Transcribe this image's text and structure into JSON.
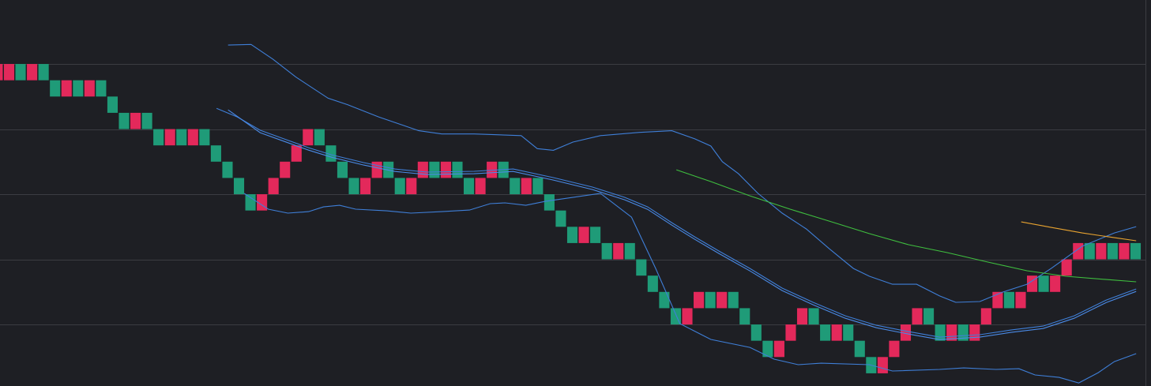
{
  "chart_data": {
    "type": "renko",
    "xlim": [
      0.66,
      100.79
    ],
    "ylim": [
      -3.78,
      19.93
    ],
    "grid_lines": [
      0,
      4,
      8,
      12,
      16
    ],
    "grid_color": "#3b3c42",
    "background": "#1e1f24",
    "bricks": {
      "values": [
        16,
        16,
        16,
        16,
        16,
        15,
        15,
        15,
        15,
        15,
        14,
        13,
        13,
        13,
        12,
        12,
        12,
        12,
        12,
        11,
        10,
        9,
        8,
        8,
        9,
        10,
        11,
        12,
        12,
        11,
        10,
        9,
        9,
        10,
        10,
        9,
        9,
        10,
        10,
        10,
        10,
        9,
        9,
        10,
        10,
        9,
        9,
        9,
        8,
        7,
        6,
        6,
        6,
        5,
        5,
        5,
        4,
        3,
        2,
        1,
        1,
        2,
        2,
        2,
        2,
        1,
        0,
        -1,
        -1,
        0,
        1,
        1,
        0,
        0,
        0,
        -1,
        -2,
        -2,
        -1,
        0,
        1,
        1,
        0,
        0,
        0,
        0,
        1,
        2,
        2,
        2,
        3,
        3,
        3,
        4,
        5,
        5,
        5,
        5,
        5,
        5
      ],
      "colors": [
        "#e3295b",
        "#e3295b",
        "#1f9b78",
        "#e3295b",
        "#1f9b78",
        "#1f9b78",
        "#e3295b",
        "#1f9b78",
        "#e3295b",
        "#1f9b78",
        "#1f9b78",
        "#1f9b78",
        "#e3295b",
        "#1f9b78",
        "#1f9b78",
        "#e3295b",
        "#1f9b78",
        "#e3295b",
        "#1f9b78",
        "#1f9b78",
        "#1f9b78",
        "#1f9b78",
        "#1f9b78",
        "#e3295b",
        "#e3295b",
        "#e3295b",
        "#e3295b",
        "#e3295b",
        "#1f9b78",
        "#1f9b78",
        "#1f9b78",
        "#1f9b78",
        "#e3295b",
        "#e3295b",
        "#1f9b78",
        "#1f9b78",
        "#e3295b",
        "#e3295b",
        "#1f9b78",
        "#e3295b",
        "#1f9b78",
        "#1f9b78",
        "#e3295b",
        "#e3295b",
        "#1f9b78",
        "#1f9b78",
        "#e3295b",
        "#1f9b78",
        "#1f9b78",
        "#1f9b78",
        "#1f9b78",
        "#e3295b",
        "#1f9b78",
        "#1f9b78",
        "#e3295b",
        "#1f9b78",
        "#1f9b78",
        "#1f9b78",
        "#1f9b78",
        "#1f9b78",
        "#e3295b",
        "#e3295b",
        "#1f9b78",
        "#e3295b",
        "#1f9b78",
        "#1f9b78",
        "#1f9b78",
        "#1f9b78",
        "#e3295b",
        "#e3295b",
        "#e3295b",
        "#1f9b78",
        "#1f9b78",
        "#e3295b",
        "#1f9b78",
        "#1f9b78",
        "#1f9b78",
        "#e3295b",
        "#e3295b",
        "#e3295b",
        "#e3295b",
        "#1f9b78",
        "#1f9b78",
        "#e3295b",
        "#1f9b78",
        "#e3295b",
        "#e3295b",
        "#e3295b",
        "#1f9b78",
        "#e3295b",
        "#e3295b",
        "#1f9b78",
        "#e3295b",
        "#e3295b",
        "#e3295b",
        "#1f9b78",
        "#e3295b",
        "#1f9b78",
        "#e3295b",
        "#1f9b78"
      ]
    },
    "series": [
      {
        "color": "#3f7fd8",
        "x": [
          20.5,
          22.5,
          24.4,
          26.4,
          29.2,
          30.9,
          33.6,
          37.1,
          39.1,
          41.9,
          46.0,
          47.4,
          48.8,
          50.5,
          52.9,
          56.3,
          59.1,
          61.1,
          62.5,
          63.5,
          64.9,
          66.6,
          68.7,
          70.8,
          72.8,
          74.9,
          76.3,
          78.3,
          80.4,
          82.4,
          83.8,
          85.9,
          87.9,
          90.0,
          92.1,
          94.8,
          97.6,
          99.5
        ],
        "values": [
          17.16,
          17.2,
          16.3,
          15.2,
          13.9,
          13.5,
          12.75,
          11.9,
          11.7,
          11.7,
          11.6,
          10.8,
          10.7,
          11.2,
          11.6,
          11.8,
          11.9,
          11.4,
          10.96,
          10.0,
          9.26,
          8.05,
          6.84,
          5.87,
          4.65,
          3.44,
          2.96,
          2.47,
          2.47,
          1.75,
          1.36,
          1.41,
          1.99,
          2.47,
          3.44,
          4.8,
          5.62,
          6.01
        ]
      },
      {
        "color": "#3f7fd8",
        "x": [
          19.5,
          21.3,
          23.3,
          25.4,
          27.5,
          29.5,
          32.3,
          35.0,
          37.8,
          41.9,
          45.3,
          48.8,
          52.2,
          55.0,
          57.0,
          59.1,
          61.1,
          63.2,
          65.9,
          68.7,
          71.4,
          74.2,
          76.9,
          79.7,
          82.4,
          85.9,
          88.6,
          91.4,
          94.1,
          96.9,
          99.5
        ],
        "values": [
          13.28,
          12.75,
          11.93,
          11.39,
          10.86,
          10.42,
          9.94,
          9.55,
          9.36,
          9.41,
          9.55,
          9.02,
          8.44,
          7.81,
          7.22,
          6.25,
          5.38,
          4.51,
          3.44,
          2.23,
          1.36,
          0.53,
          -0.05,
          -0.44,
          -0.78,
          -0.63,
          -0.34,
          -0.1,
          0.53,
          1.5,
          2.18
        ]
      },
      {
        "color": "#4a8ae6",
        "x": [
          20.5,
          23.3,
          25.4,
          27.5,
          29.5,
          32.3,
          35.0,
          37.8,
          41.9,
          45.3,
          48.8,
          52.2,
          55.0,
          57.0,
          59.1,
          61.1,
          63.2,
          65.9,
          68.7,
          71.4,
          74.2,
          76.9,
          79.7,
          82.4,
          85.9,
          88.6,
          91.4,
          94.1,
          96.9,
          99.5
        ],
        "values": [
          13.18,
          11.78,
          11.24,
          10.71,
          10.27,
          9.79,
          9.4,
          9.21,
          9.26,
          9.4,
          8.87,
          8.29,
          7.66,
          7.07,
          6.1,
          5.23,
          4.36,
          3.29,
          2.08,
          1.21,
          0.38,
          -0.2,
          -0.59,
          -0.93,
          -0.78,
          -0.49,
          -0.25,
          0.38,
          1.35,
          2.03
        ]
      },
      {
        "color": "#3f7fd8",
        "x": [
          21.9,
          24.0,
          25.7,
          27.5,
          28.8,
          30.2,
          31.6,
          34.3,
          36.4,
          39.1,
          41.5,
          43.3,
          44.6,
          46.4,
          48.1,
          52.9,
          55.6,
          57.7,
          59.8,
          62.5,
          65.9,
          68.0,
          70.1,
          72.1,
          76.3,
          78.3,
          82.4,
          84.5,
          87.3,
          89.3,
          90.7,
          92.8,
          94.5,
          96.2,
          97.6,
          99.5
        ],
        "values": [
          8.05,
          7.08,
          6.84,
          6.93,
          7.22,
          7.32,
          7.08,
          6.98,
          6.84,
          6.93,
          7.03,
          7.42,
          7.47,
          7.32,
          7.56,
          8.05,
          6.59,
          3.44,
          0.05,
          -0.92,
          -1.41,
          -2.13,
          -2.47,
          -2.38,
          -2.47,
          -2.86,
          -2.76,
          -2.67,
          -2.76,
          -2.72,
          -3.1,
          -3.25,
          -3.59,
          -2.96,
          -2.28,
          -1.79
        ]
      },
      {
        "color": "#3fbf3f",
        "x": [
          59.5,
          62.5,
          65.9,
          69.4,
          72.8,
          76.3,
          79.7,
          83.1,
          86.6,
          90.0,
          93.4,
          96.9,
          99.5
        ],
        "values": [
          9.5,
          8.78,
          7.9,
          7.08,
          6.35,
          5.58,
          4.9,
          4.41,
          3.83,
          3.3,
          2.96,
          2.76,
          2.62
        ]
      },
      {
        "color": "#e8a330",
        "x": [
          89.5,
          92.1,
          94.8,
          97.6,
          99.5
        ],
        "values": [
          6.3,
          5.96,
          5.62,
          5.33,
          5.14
        ]
      }
    ]
  }
}
